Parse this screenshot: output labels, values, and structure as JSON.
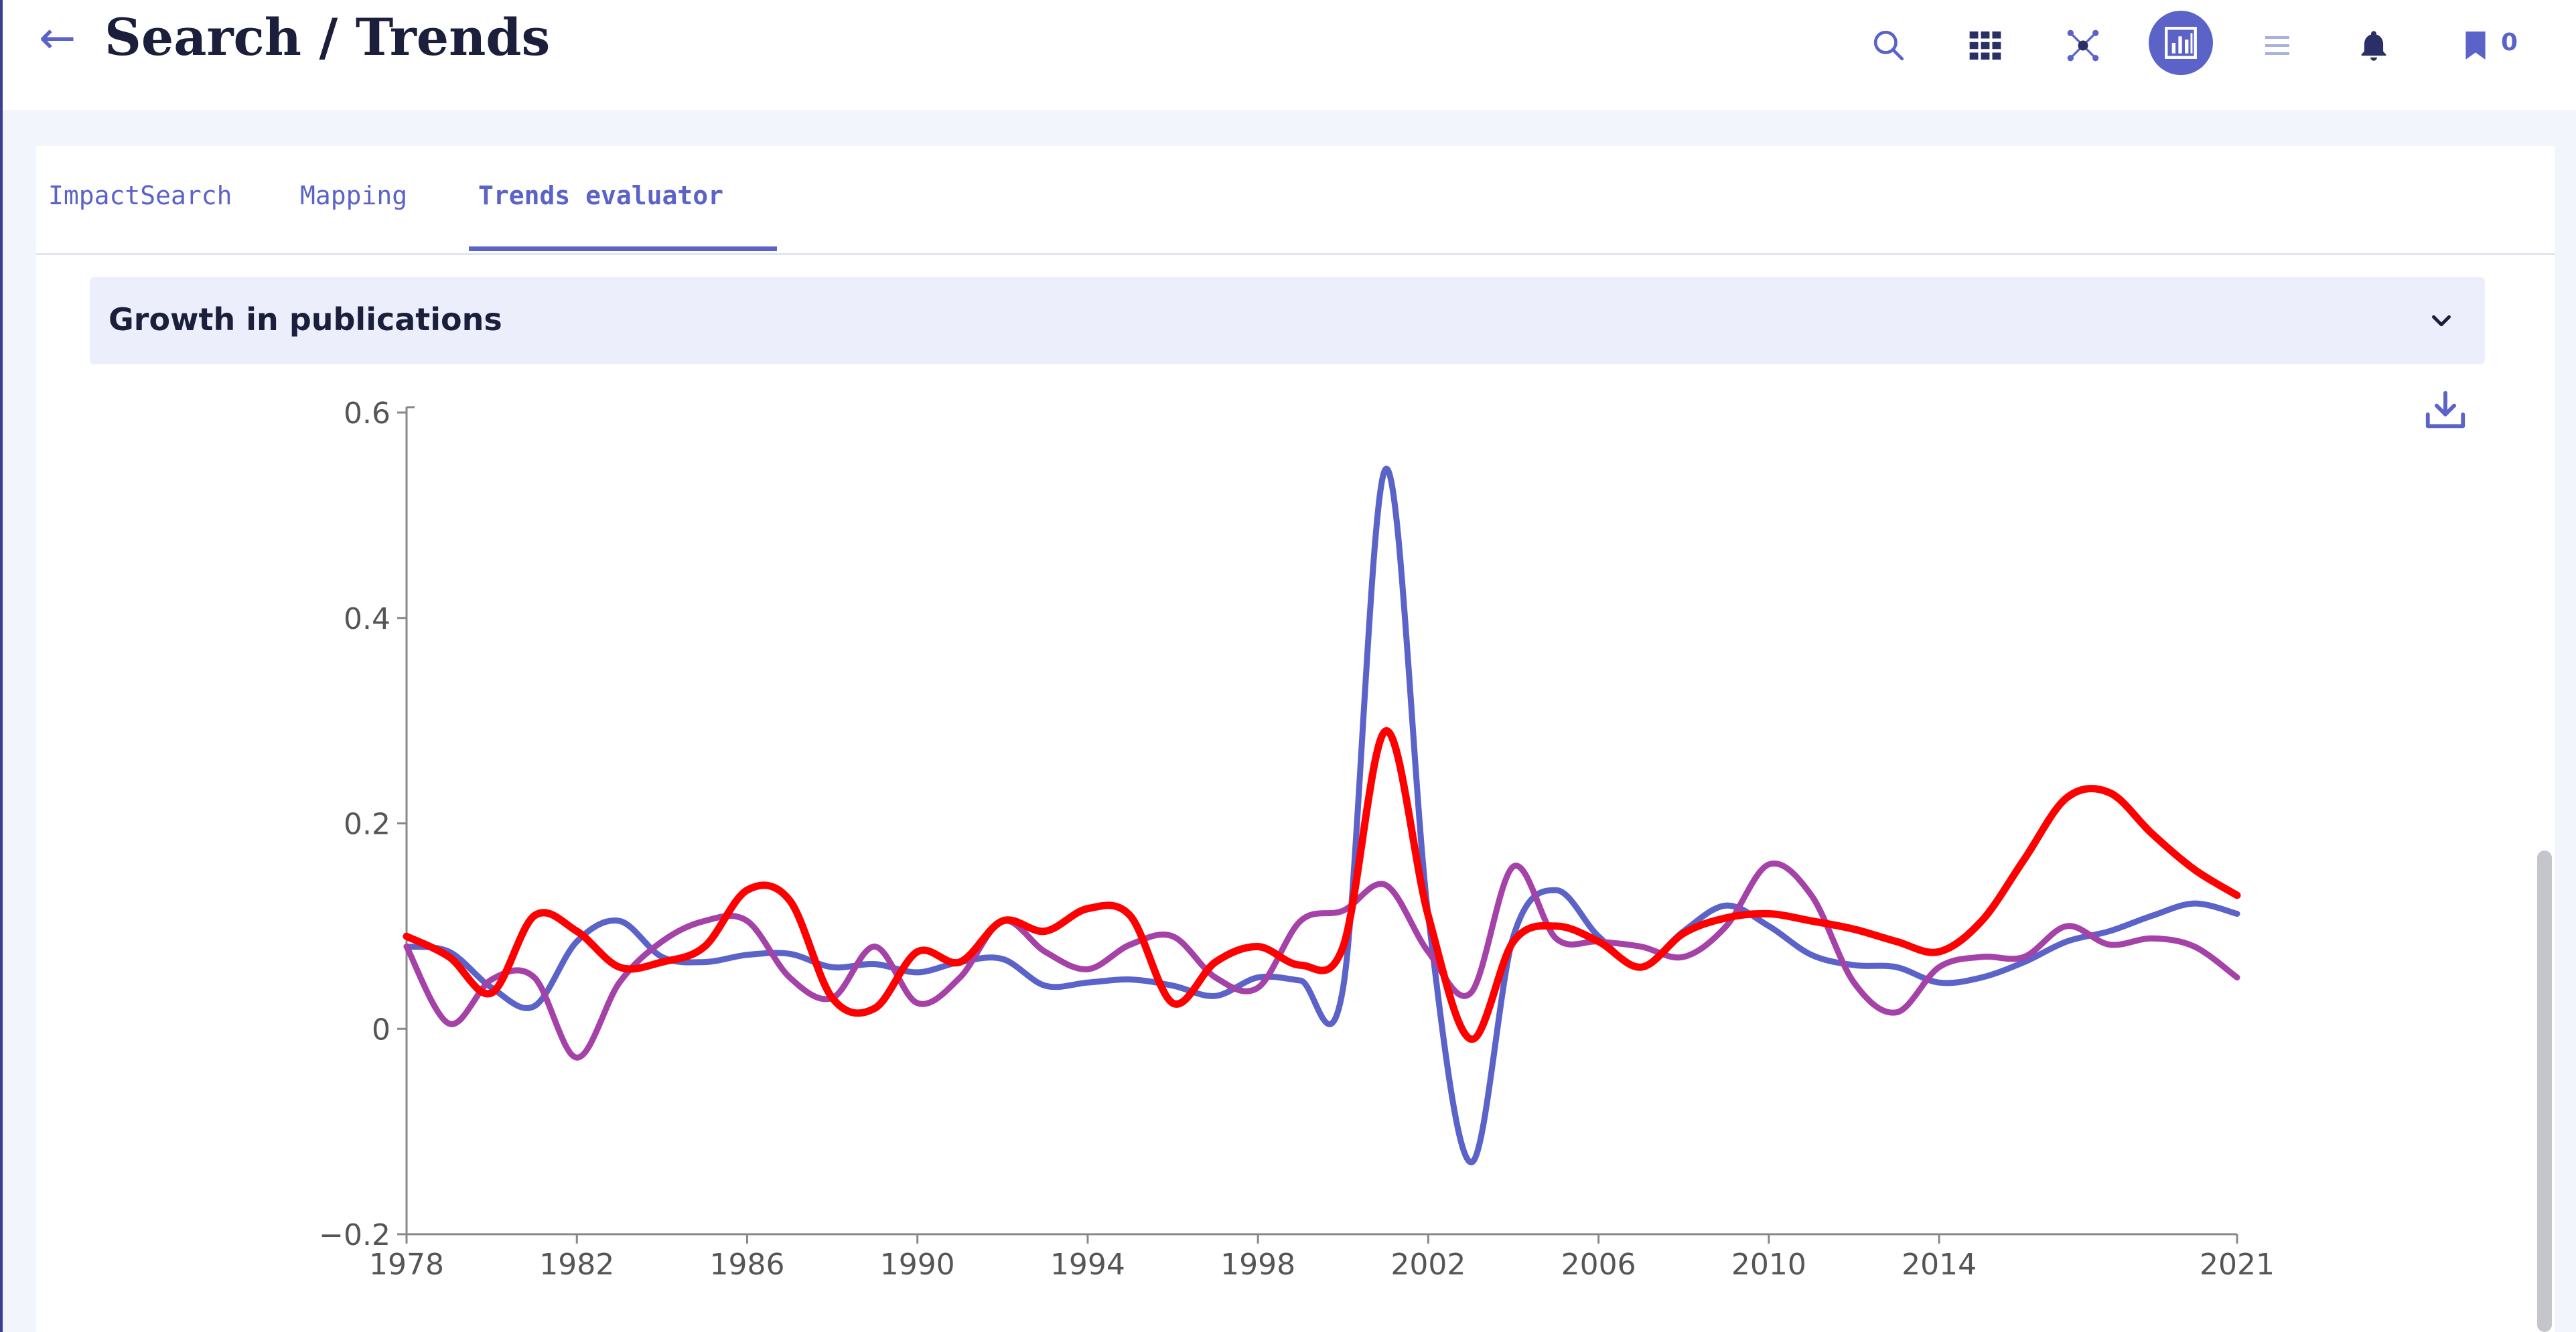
{
  "header": {
    "back_label": "←",
    "title": "Search / Trends",
    "icons": [
      "search-icon",
      "grid-icon",
      "network-icon",
      "bar-chart-icon",
      "list-icon",
      "bell-icon",
      "bookmark-icon"
    ],
    "active_icon": "bar-chart-icon",
    "bookmark_count": "0"
  },
  "colors": {
    "accent": "#5b63c9",
    "series_blue": "#5b63c9",
    "series_purple": "#a542a8",
    "series_red": "#ff0000"
  },
  "tabs": [
    {
      "label": "ImpactSearch",
      "active": false
    },
    {
      "label": "Mapping",
      "active": false
    },
    {
      "label": "Trends evaluator",
      "active": true
    }
  ],
  "panel": {
    "title": "Growth in publications",
    "download_icon": "download-icon",
    "chevron_icon": "chevron-down-icon"
  },
  "chart_data": {
    "type": "line",
    "title": "",
    "xlabel": "",
    "ylabel": "",
    "ylim": [
      -0.2,
      0.6
    ],
    "xlim": [
      1978,
      2021
    ],
    "y_ticks": [
      "0.6",
      "0.4",
      "0.2",
      "0",
      "-0.2"
    ],
    "x_ticks": [
      "1978",
      "1982",
      "1986",
      "1990",
      "1994",
      "1998",
      "2002",
      "2006",
      "2010",
      "2014",
      "2021"
    ],
    "grid": false,
    "legend": "none",
    "x": [
      1978,
      1979,
      1980,
      1981,
      1982,
      1983,
      1984,
      1985,
      1986,
      1987,
      1988,
      1989,
      1990,
      1991,
      1992,
      1993,
      1994,
      1995,
      1996,
      1997,
      1998,
      1999,
      2000,
      2001,
      2002,
      2003,
      2004,
      2005,
      2006,
      2007,
      2008,
      2009,
      2010,
      2011,
      2012,
      2013,
      2014,
      2015,
      2016,
      2017,
      2018,
      2019,
      2020,
      2021
    ],
    "series": [
      {
        "values": [
          0.08,
          0.075,
          0.04,
          0.022,
          0.085,
          0.105,
          0.07,
          0.065,
          0.072,
          0.073,
          0.06,
          0.063,
          0.055,
          0.065,
          0.068,
          0.042,
          0.045,
          0.048,
          0.042,
          0.032,
          0.05,
          0.047,
          0.04,
          0.545,
          0.11,
          -0.13,
          0.09,
          0.135,
          0.09,
          0.06,
          0.095,
          0.12,
          0.1,
          0.072,
          0.062,
          0.06,
          0.045,
          0.05,
          0.065,
          0.085,
          0.095,
          0.11,
          0.122,
          0.112
        ],
        "color": "#5b63c9"
      },
      {
        "values": [
          0.08,
          0.005,
          0.048,
          0.05,
          -0.028,
          0.045,
          0.085,
          0.105,
          0.105,
          0.05,
          0.03,
          0.08,
          0.025,
          0.05,
          0.105,
          0.075,
          0.058,
          0.082,
          0.09,
          0.05,
          0.04,
          0.105,
          0.115,
          0.14,
          0.075,
          0.035,
          0.158,
          0.088,
          0.085,
          0.08,
          0.07,
          0.1,
          0.16,
          0.13,
          0.045,
          0.016,
          0.06,
          0.07,
          0.07,
          0.1,
          0.082,
          0.088,
          0.08,
          0.05
        ],
        "color": "#a542a8"
      },
      {
        "values": [
          0.09,
          0.07,
          0.035,
          0.11,
          0.095,
          0.06,
          0.065,
          0.08,
          0.135,
          0.125,
          0.03,
          0.02,
          0.075,
          0.065,
          0.105,
          0.095,
          0.117,
          0.11,
          0.025,
          0.065,
          0.08,
          0.062,
          0.08,
          0.29,
          0.11,
          -0.01,
          0.085,
          0.1,
          0.085,
          0.06,
          0.093,
          0.108,
          0.112,
          0.105,
          0.097,
          0.085,
          0.075,
          0.105,
          0.165,
          0.225,
          0.23,
          0.19,
          0.155,
          0.13
        ],
        "color": "#ff0000"
      }
    ]
  }
}
